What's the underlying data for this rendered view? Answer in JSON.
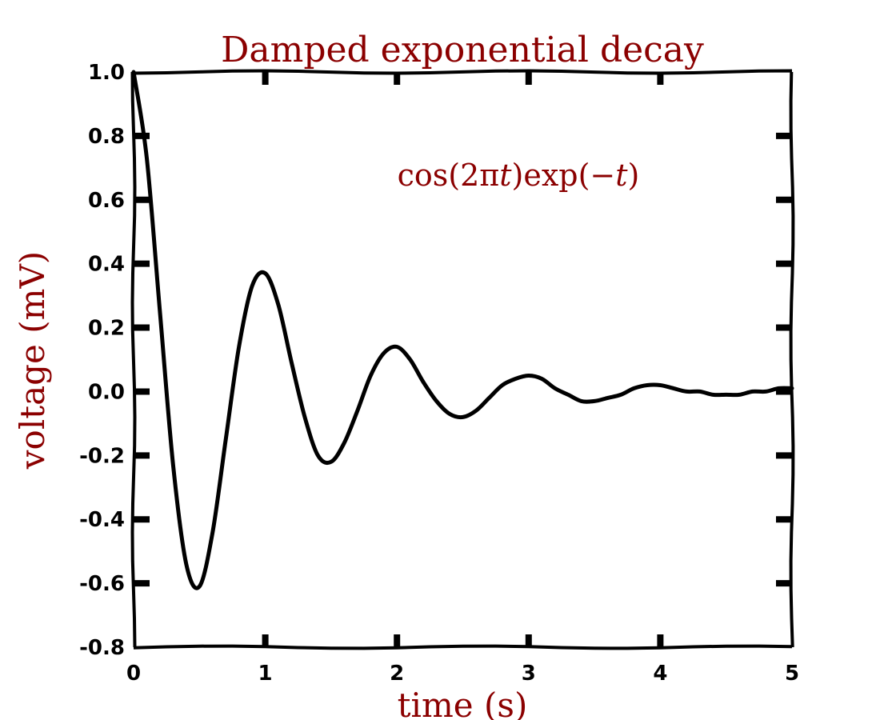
{
  "chart_data": {
    "type": "line",
    "style": "xkcd",
    "title": "Damped exponential decay",
    "xlabel": "time (s)",
    "ylabel": "voltage (mV)",
    "xlim": [
      0,
      5
    ],
    "ylim": [
      -0.8,
      1.0
    ],
    "xticks": [
      "0",
      "1",
      "2",
      "3",
      "4",
      "5"
    ],
    "yticks": [
      "1.0",
      "0.8",
      "0.6",
      "0.4",
      "0.2",
      "0.0",
      "-0.2",
      "-0.4",
      "-0.6",
      "-0.8"
    ],
    "grid": false,
    "annotation": {
      "text_parts": [
        "cos(2π",
        "t",
        ")exp(−",
        "t",
        ")"
      ]
    },
    "series": [
      {
        "function": "cos(2πt)exp(-t)",
        "x": [
          0.0,
          0.1,
          0.2,
          0.3,
          0.4,
          0.5,
          0.6,
          0.7,
          0.8,
          0.9,
          1.0,
          1.1,
          1.2,
          1.3,
          1.4,
          1.5,
          1.6,
          1.7,
          1.8,
          1.9,
          2.0,
          2.1,
          2.2,
          2.3,
          2.4,
          2.5,
          2.6,
          2.7,
          2.8,
          2.9,
          3.0,
          3.1,
          3.2,
          3.3,
          3.4,
          3.5,
          3.6,
          3.7,
          3.8,
          3.9,
          4.0,
          4.1,
          4.2,
          4.3,
          4.4,
          4.5,
          4.6,
          4.7,
          4.8,
          4.9,
          5.0
        ],
        "y": [
          1.0,
          0.73,
          0.25,
          -0.23,
          -0.54,
          -0.61,
          -0.44,
          -0.15,
          0.14,
          0.33,
          0.37,
          0.27,
          0.09,
          -0.08,
          -0.2,
          -0.22,
          -0.16,
          -0.06,
          0.05,
          0.12,
          0.14,
          0.1,
          0.03,
          -0.03,
          -0.07,
          -0.08,
          -0.06,
          -0.02,
          0.02,
          0.04,
          0.05,
          0.04,
          0.01,
          -0.01,
          -0.03,
          -0.03,
          -0.02,
          -0.01,
          0.01,
          0.02,
          0.02,
          0.01,
          0.0,
          0.0,
          -0.01,
          -0.01,
          -0.01,
          0.0,
          0.0,
          0.01,
          0.01
        ],
        "color": "#000000"
      }
    ],
    "colors": {
      "text_accent": "#8b0000",
      "line": "#000000"
    }
  }
}
